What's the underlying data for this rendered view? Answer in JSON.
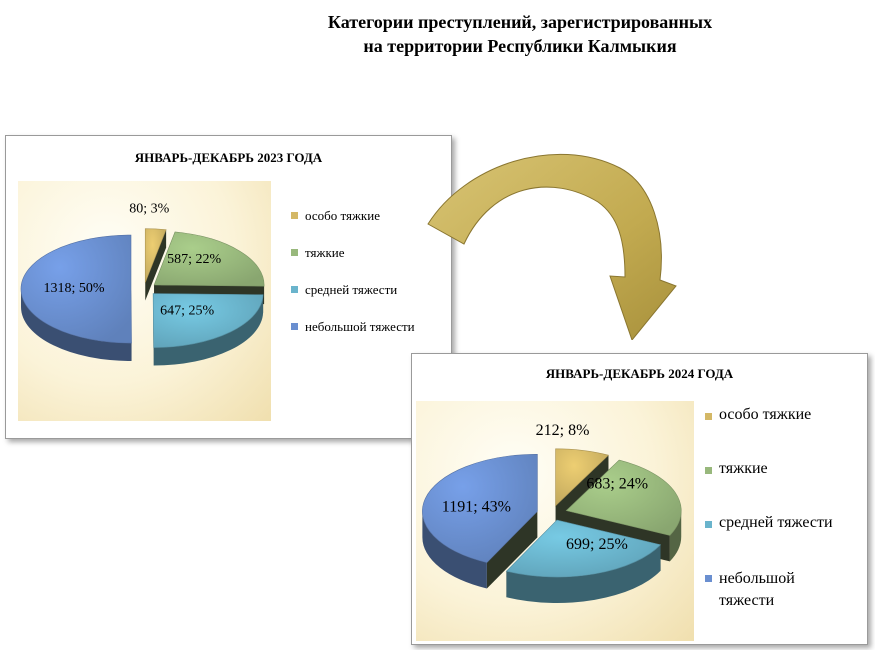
{
  "title": {
    "line1": "Категории преступлений, зарегистрированных",
    "line2": "на территории  Республики Калмыкия"
  },
  "colors": {
    "особо тяжкие": "#d4b866",
    "тяжкие": "#98b87c",
    "средней тяжести": "#6ab4cc",
    "небольшой тяжести": "#6a8fd0",
    "arrow": "#c9b25a"
  },
  "chart_data": [
    {
      "type": "pie",
      "title": "ЯНВАРЬ-ДЕКАБРЬ 2023 ГОДА",
      "legend_position": "right",
      "slices": [
        {
          "name": "особо тяжкие",
          "value": 80,
          "percent": 3,
          "label": "80; 3%"
        },
        {
          "name": "тяжкие",
          "value": 587,
          "percent": 22,
          "label": "587; 22%"
        },
        {
          "name": "средней тяжести",
          "value": 647,
          "percent": 25,
          "label": "647; 25%"
        },
        {
          "name": "небольшой тяжести",
          "value": 1318,
          "percent": 50,
          "label": "1318; 50%"
        }
      ]
    },
    {
      "type": "pie",
      "title": "ЯНВАРЬ-ДЕКАБРЬ 2024 ГОДА",
      "legend_position": "right",
      "slices": [
        {
          "name": "особо тяжкие",
          "value": 212,
          "percent": 8,
          "label": "212; 8%"
        },
        {
          "name": "тяжкие",
          "value": 683,
          "percent": 24,
          "label": "683; 24%"
        },
        {
          "name": "средней тяжести",
          "value": 699,
          "percent": 25,
          "label": "699; 25%"
        },
        {
          "name": "небольшой тяжести",
          "value": 1191,
          "percent": 43,
          "label": "1191; 43%"
        }
      ]
    }
  ]
}
